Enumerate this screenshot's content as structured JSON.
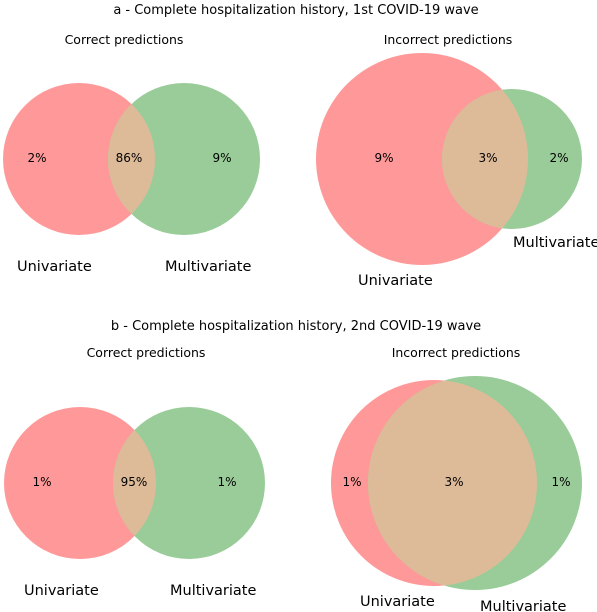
{
  "colors": {
    "univariate": "#ff9999",
    "multivariate": "#99cc99",
    "overlap": "#ddbb99"
  },
  "sections": [
    {
      "title": "a - Complete hospitalization history, 1st COVID-19 wave",
      "panels": [
        {
          "title": "Correct predictions",
          "univariate_only": "2%",
          "both": "86%",
          "multivariate_only": "9%",
          "label_univariate": "Univariate",
          "label_multivariate": "Multivariate"
        },
        {
          "title": "Incorrect predictions",
          "univariate_only": "9%",
          "both": "3%",
          "multivariate_only": "2%",
          "label_univariate": "Univariate",
          "label_multivariate": "Multivariate"
        }
      ]
    },
    {
      "title": "b - Complete hospitalization history, 2nd COVID-19 wave",
      "panels": [
        {
          "title": "Correct predictions",
          "univariate_only": "1%",
          "both": "95%",
          "multivariate_only": "1%",
          "label_univariate": "Univariate",
          "label_multivariate": "Multivariate"
        },
        {
          "title": "Incorrect predictions",
          "univariate_only": "1%",
          "both": "3%",
          "multivariate_only": "1%",
          "label_univariate": "Univariate",
          "label_multivariate": "Multivariate"
        }
      ]
    }
  ]
}
